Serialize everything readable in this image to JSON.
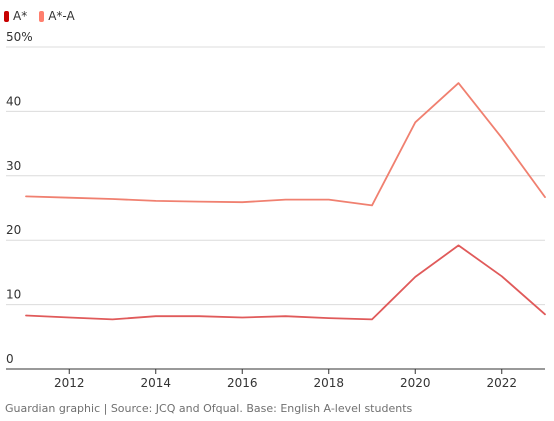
{
  "chart_data": {
    "type": "line",
    "title": "",
    "xlabel": "",
    "ylabel": "",
    "legend": [
      {
        "name": "A*",
        "color": "#c70000"
      },
      {
        "name": "A*-A",
        "color": "#ff7f6e"
      }
    ],
    "y_tick_labels": [
      "50%",
      "40",
      "30",
      "20",
      "10",
      "0"
    ],
    "y_ticks": [
      50,
      40,
      30,
      20,
      10,
      0
    ],
    "ylim": [
      0,
      50
    ],
    "x_tick_labels": [
      "2012",
      "2014",
      "2016",
      "2018",
      "2020",
      "2022"
    ],
    "x_ticks": [
      2012,
      2014,
      2016,
      2018,
      2020,
      2022
    ],
    "xlim": [
      2011,
      2023
    ],
    "grid": "horizontal",
    "legend_placement": "top-left",
    "x": [
      2011,
      2012,
      2013,
      2014,
      2015,
      2016,
      2017,
      2018,
      2019,
      2020,
      2021,
      2022,
      2023
    ],
    "series": [
      {
        "name": "A*-A",
        "color": "#f08070",
        "values": [
          26.8,
          26.6,
          26.4,
          26.1,
          26.0,
          25.9,
          26.3,
          26.3,
          25.4,
          38.3,
          44.4,
          35.9,
          26.7
        ]
      },
      {
        "name": "A*",
        "color": "#e05a5a",
        "values": [
          8.3,
          8.0,
          7.7,
          8.2,
          8.2,
          8.0,
          8.2,
          7.9,
          7.7,
          14.3,
          19.2,
          14.4,
          8.5
        ]
      }
    ]
  },
  "source": "Guardian graphic | Source: JCQ and Ofqual. Base: English A-level students"
}
